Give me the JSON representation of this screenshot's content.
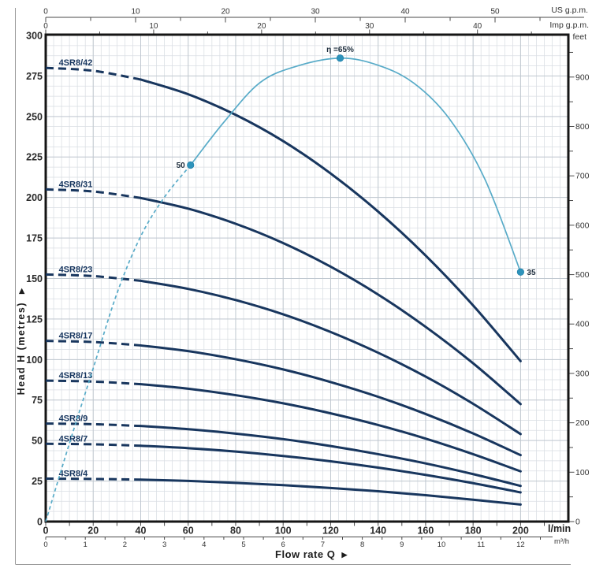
{
  "labels": {
    "us_gpm_unit": "US g.p.m.",
    "imp_gpm_unit": "Imp g.p.m.",
    "feet_unit": "feet",
    "lmin_unit": "l/min",
    "m3h_unit": "m³/h",
    "flow_axis_title": "Flow rate Q",
    "head_axis_title": "Head H (metres)"
  },
  "icons": {
    "right_arrow": "▶"
  },
  "colors": {
    "pump_curve": "#18365e",
    "efficiency_curve": "#58abc8",
    "marker_fill": "#2d93bb",
    "marker_edge": "#1b7aa3",
    "grid_minor": "#d9dee3",
    "grid_major": "#c0c8d0",
    "frame": "#151515",
    "axis_line": "#4a4a4a",
    "tick_text": "#333333",
    "big_tick_text": "#2b2b2b",
    "curve_label": "#17365f",
    "marker_label": "#1a2a3a",
    "border_rule": "#9a9a9a"
  },
  "chart_data": {
    "type": "line",
    "title": "4SR8 pump performance curves",
    "x_axis": {
      "unit": "l/min",
      "min": 0,
      "max": 220,
      "major_ticks": [
        0,
        20,
        40,
        60,
        80,
        100,
        120,
        140,
        160,
        180,
        200
      ],
      "minor_step": 10,
      "minor_max": 210
    },
    "x_secondary_axes": [
      {
        "unit": "m³/h",
        "lmin_per_unit": 16.667,
        "major_ticks": [
          0,
          1,
          2,
          3,
          4,
          5,
          6,
          7,
          8,
          9,
          10,
          11,
          12
        ],
        "minor_step": 0.5,
        "minor_max": 12.5
      },
      {
        "unit": "US g.p.m.",
        "lmin_per_unit": 3.785,
        "major_ticks": [
          0,
          10,
          20,
          30,
          40,
          50
        ],
        "minor_step": 5,
        "minor_max": 55
      },
      {
        "unit": "Imp g.p.m.",
        "lmin_per_unit": 4.546,
        "major_ticks": [
          0,
          10,
          20,
          30,
          40
        ],
        "minor_step": 5,
        "minor_max": 45
      }
    ],
    "y_axis": {
      "unit": "metres",
      "min": 0,
      "max": 300,
      "major_ticks": [
        0,
        25,
        50,
        75,
        100,
        125,
        150,
        175,
        200,
        225,
        250,
        275,
        300
      ],
      "minor_step": 6.25
    },
    "y_secondary_axis": {
      "unit": "feet",
      "m_per_unit": 0.3048,
      "major_ticks": [
        0,
        100,
        200,
        300,
        400,
        500,
        600,
        700,
        800,
        900
      ],
      "minor_step": 50,
      "minor_max": 950
    },
    "pump_curves": [
      {
        "label": "4SR8/42",
        "dash_until_q": 40,
        "points": [
          [
            0,
            280
          ],
          [
            20,
            278.2
          ],
          [
            40,
            272.8
          ],
          [
            60,
            263.7
          ],
          [
            80,
            251.0
          ],
          [
            100,
            234.8
          ],
          [
            120,
            214.8
          ],
          [
            140,
            191.3
          ],
          [
            160,
            164.2
          ],
          [
            180,
            133.4
          ],
          [
            200,
            99
          ]
        ]
      },
      {
        "label": "4SR8/31",
        "dash_until_q": 40,
        "points": [
          [
            0,
            205
          ],
          [
            20,
            203.7
          ],
          [
            40,
            199.7
          ],
          [
            60,
            193.1
          ],
          [
            80,
            183.8
          ],
          [
            100,
            171.9
          ],
          [
            120,
            157.3
          ],
          [
            140,
            140.1
          ],
          [
            160,
            120.2
          ],
          [
            180,
            97.7
          ],
          [
            200,
            72.5
          ]
        ]
      },
      {
        "label": "4SR8/23",
        "dash_until_q": 40,
        "points": [
          [
            0,
            152.5
          ],
          [
            20,
            151.5
          ],
          [
            40,
            148.6
          ],
          [
            60,
            143.6
          ],
          [
            80,
            136.7
          ],
          [
            100,
            127.9
          ],
          [
            120,
            117.0
          ],
          [
            140,
            104.2
          ],
          [
            160,
            89.5
          ],
          [
            180,
            72.7
          ],
          [
            200,
            54
          ]
        ]
      },
      {
        "label": "4SR8/17",
        "dash_until_q": 40,
        "points": [
          [
            0,
            111.5
          ],
          [
            20,
            110.8
          ],
          [
            40,
            108.7
          ],
          [
            60,
            105.2
          ],
          [
            80,
            100.2
          ],
          [
            100,
            93.9
          ],
          [
            120,
            86.1
          ],
          [
            140,
            77.0
          ],
          [
            160,
            66.4
          ],
          [
            180,
            54.4
          ],
          [
            200,
            41
          ]
        ]
      },
      {
        "label": "4SR8/13",
        "dash_until_q": 40,
        "points": [
          [
            0,
            87
          ],
          [
            20,
            86.4
          ],
          [
            40,
            84.8
          ],
          [
            60,
            82.0
          ],
          [
            80,
            78.0
          ],
          [
            100,
            73.0
          ],
          [
            120,
            66.8
          ],
          [
            140,
            59.6
          ],
          [
            160,
            51.2
          ],
          [
            180,
            41.6
          ],
          [
            200,
            31
          ]
        ]
      },
      {
        "label": "4SR8/9",
        "dash_until_q": 40,
        "points": [
          [
            0,
            60.5
          ],
          [
            20,
            60.1
          ],
          [
            40,
            59.0
          ],
          [
            60,
            57.0
          ],
          [
            80,
            54.3
          ],
          [
            100,
            50.9
          ],
          [
            120,
            46.6
          ],
          [
            140,
            41.6
          ],
          [
            160,
            35.9
          ],
          [
            180,
            29.3
          ],
          [
            200,
            22
          ]
        ]
      },
      {
        "label": "4SR8/7",
        "dash_until_q": 40,
        "points": [
          [
            0,
            48
          ],
          [
            20,
            47.7
          ],
          [
            40,
            46.8
          ],
          [
            60,
            45.3
          ],
          [
            80,
            43.2
          ],
          [
            100,
            40.5
          ],
          [
            120,
            37.2
          ],
          [
            140,
            33.3
          ],
          [
            160,
            28.8
          ],
          [
            180,
            23.7
          ],
          [
            200,
            18
          ]
        ]
      },
      {
        "label": "4SR8/4",
        "dash_until_q": 40,
        "points": [
          [
            0,
            26.5
          ],
          [
            20,
            26.3
          ],
          [
            40,
            25.9
          ],
          [
            60,
            25.1
          ],
          [
            80,
            23.9
          ],
          [
            100,
            22.5
          ],
          [
            120,
            20.7
          ],
          [
            140,
            18.7
          ],
          [
            160,
            16.3
          ],
          [
            180,
            13.5
          ],
          [
            200,
            10.5
          ]
        ]
      }
    ],
    "efficiency_curve": {
      "unit": "%",
      "metres_per_percent": 4.4,
      "dash_until_q": 61,
      "points": [
        [
          0,
          0
        ],
        [
          10,
          11
        ],
        [
          20,
          21.5
        ],
        [
          30,
          32
        ],
        [
          40,
          40
        ],
        [
          50,
          45.5
        ],
        [
          61,
          50
        ],
        [
          75,
          56
        ],
        [
          90,
          61.5
        ],
        [
          105,
          63.8
        ],
        [
          124,
          65
        ],
        [
          140,
          64
        ],
        [
          155,
          61.5
        ],
        [
          170,
          56.5
        ],
        [
          185,
          48
        ],
        [
          200,
          35
        ]
      ],
      "markers": [
        {
          "q": 61,
          "eta": 50,
          "label": "50",
          "anchor": "left"
        },
        {
          "q": 124,
          "eta": 65,
          "label": "η =65%",
          "anchor": "top"
        },
        {
          "q": 200,
          "eta": 35,
          "label": "35",
          "anchor": "right"
        }
      ]
    }
  }
}
